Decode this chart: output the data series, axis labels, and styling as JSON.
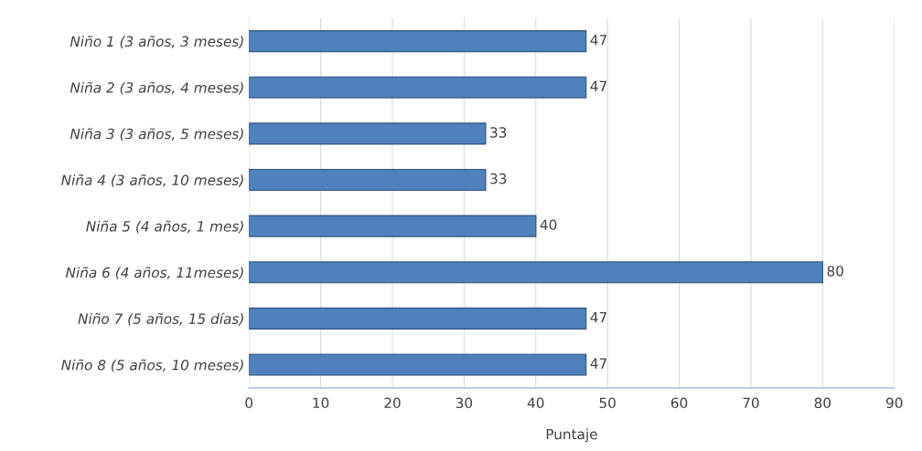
{
  "chart_data": {
    "type": "bar",
    "orientation": "horizontal",
    "xlabel": "Puntaje",
    "categories": [
      "Niño 1 (3 años, 3 meses)",
      "Niña 2 (3 años, 4 meses)",
      "Niña 3 (3 años, 5 meses)",
      "Niña 4 (3 años, 10 meses)",
      "Niña 5 (4 años, 1 mes)",
      "Niña 6 (4 años, 11meses)",
      "Niño 7 (5 años, 15 días)",
      "Niño 8 (5 años, 10 meses)"
    ],
    "values": [
      47,
      47,
      33,
      33,
      40,
      80,
      47,
      47
    ],
    "color": "#4f81bd",
    "xlim": [
      0,
      90
    ],
    "xticks": [
      0,
      10,
      20,
      30,
      40,
      50,
      60,
      70,
      80,
      90
    ],
    "grid": "x",
    "data_labels": true
  }
}
